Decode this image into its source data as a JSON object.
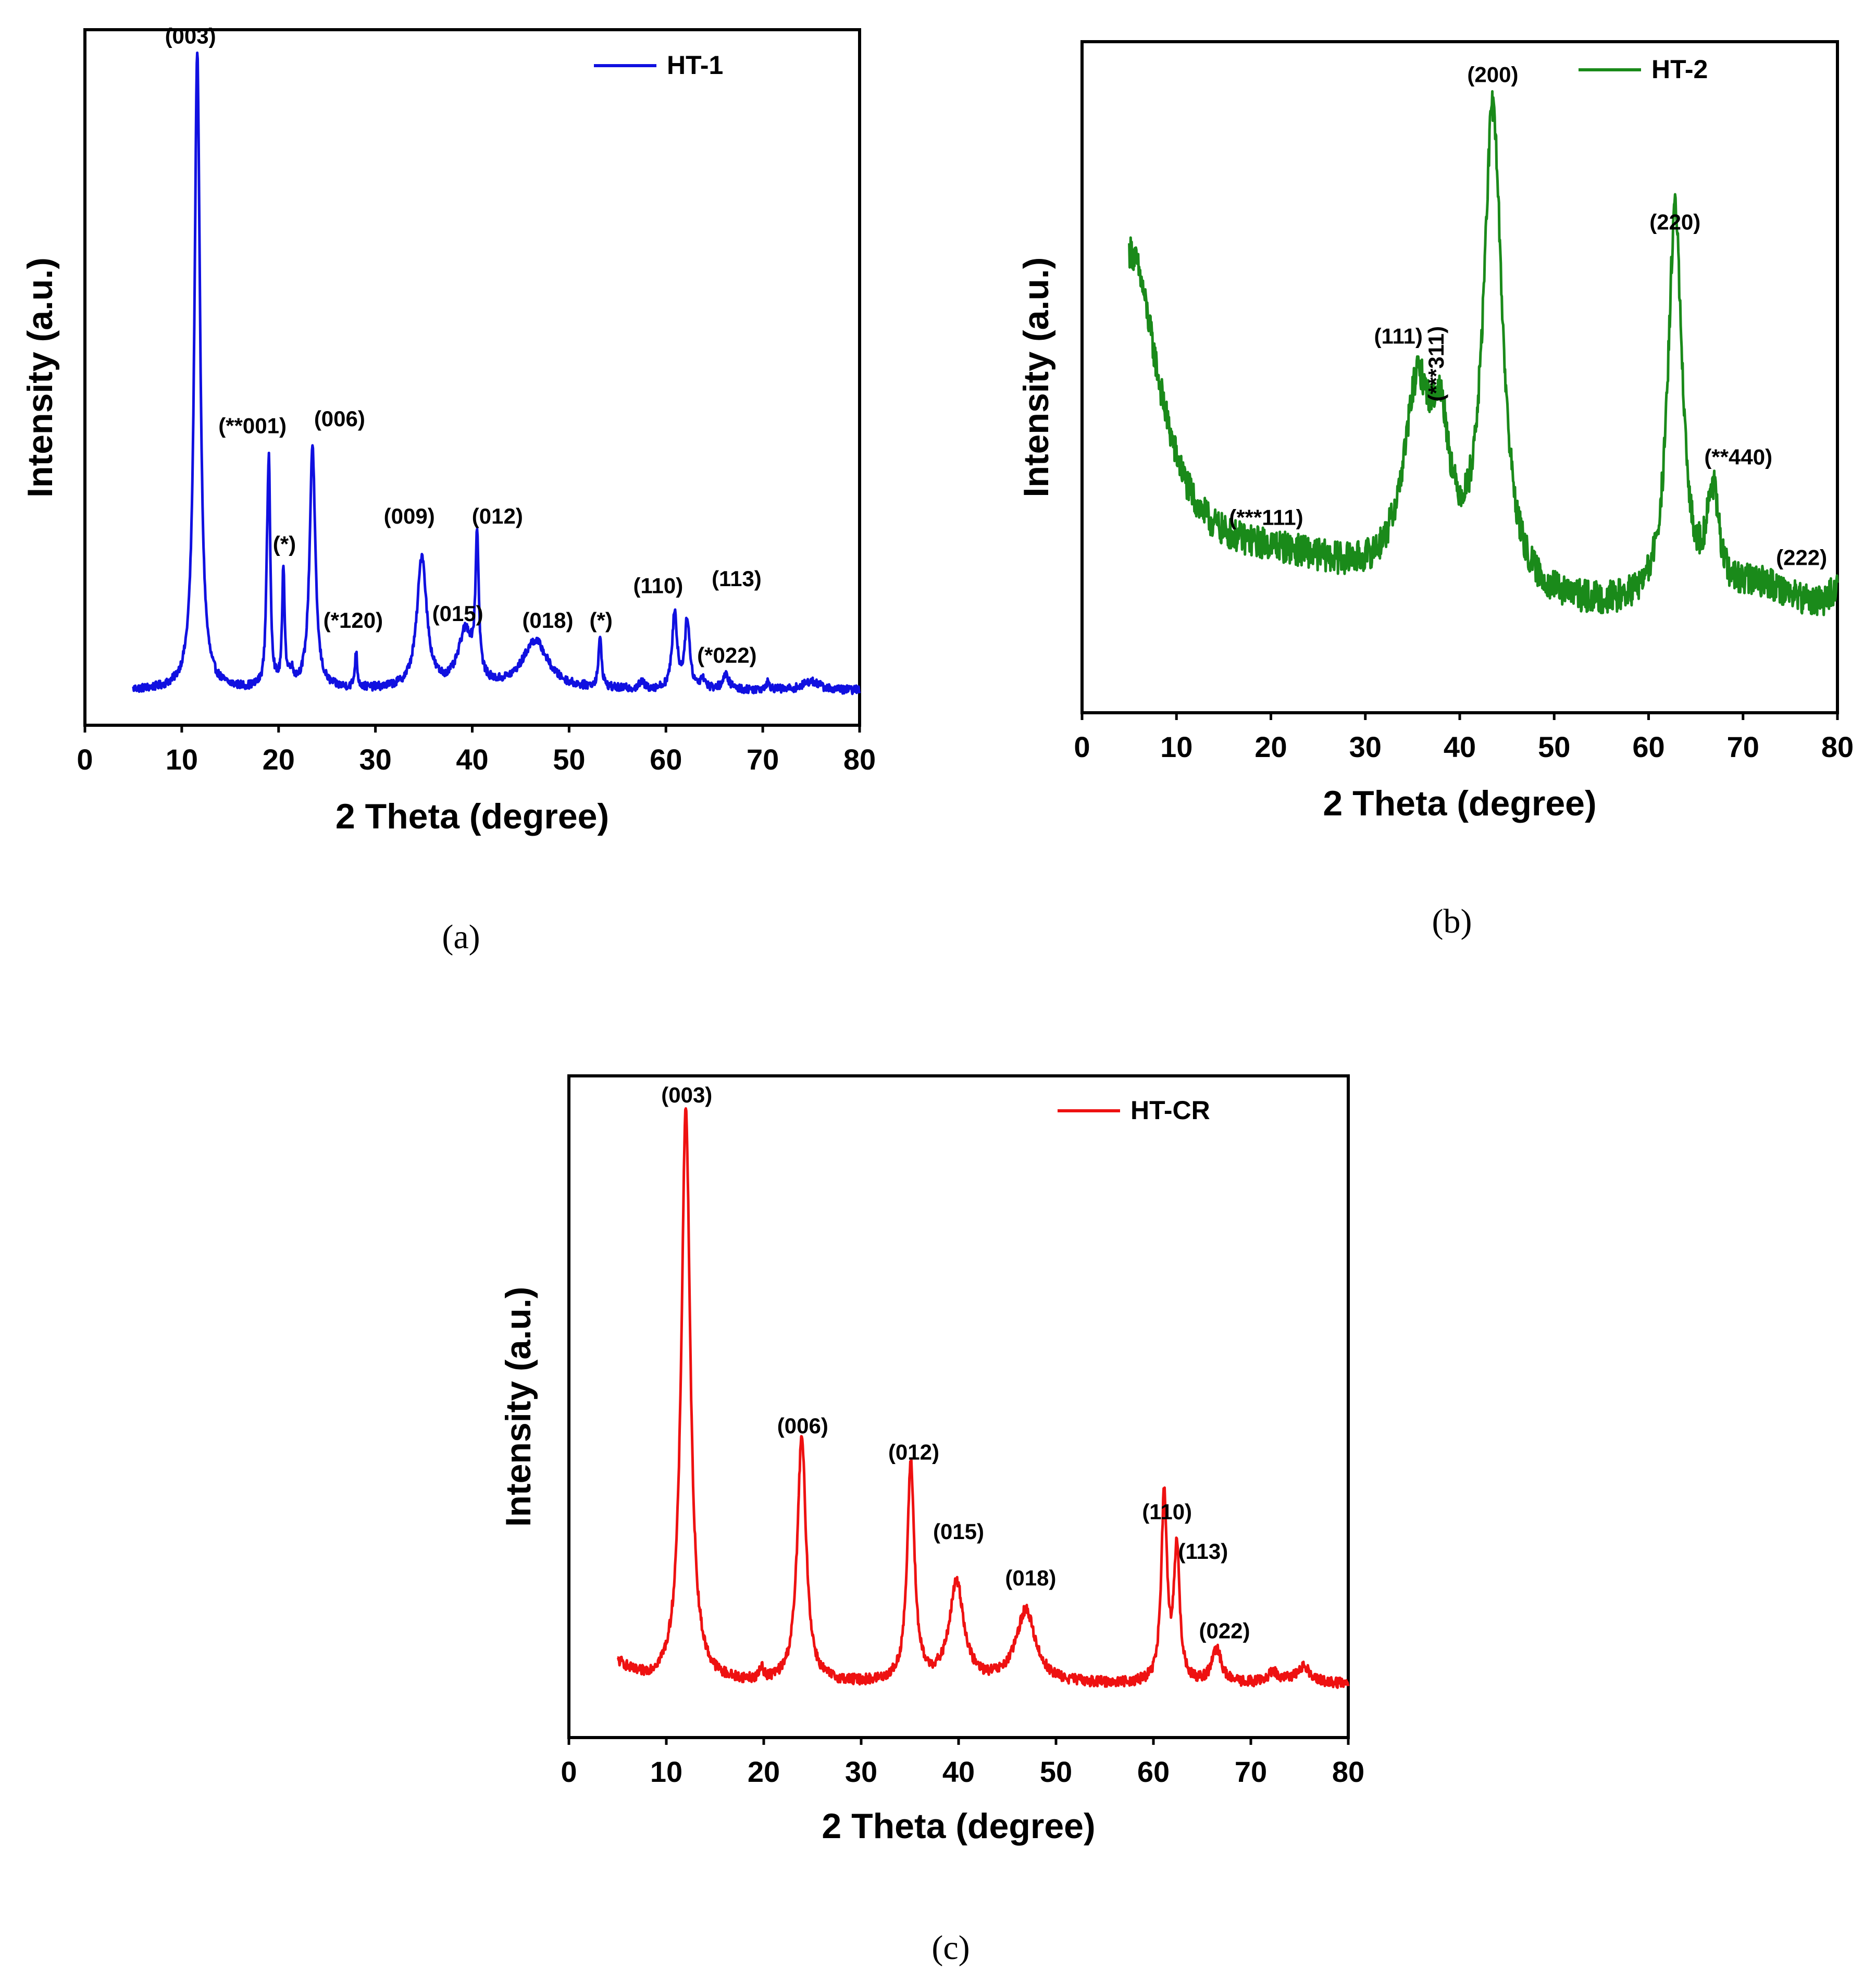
{
  "chart_data": [
    {
      "type": "line",
      "panel": "a",
      "caption": "(a)",
      "xlabel": "2 Theta (degree)",
      "ylabel": "Intensity (a.u.)",
      "xlim": [
        0,
        80
      ],
      "ylim": [
        0,
        100
      ],
      "xticks": [
        "0",
        "10",
        "20",
        "30",
        "40",
        "50",
        "60",
        "70",
        "80"
      ],
      "grid": false,
      "legend": {
        "label": "HT-1",
        "position": "top-right"
      },
      "series": [
        {
          "name": "HT-1",
          "color": "#1010e0",
          "baseline": 5,
          "noise": 0.6,
          "x_range": [
            5,
            80
          ],
          "peaks": [
            {
              "x": 11.6,
              "h": 92,
              "w": 0.35
            },
            {
              "x": 18.8,
              "h": 8,
              "w": 0.15
            },
            {
              "x": 19.0,
              "h": 30,
              "w": 0.18
            },
            {
              "x": 20.5,
              "h": 17,
              "w": 0.15
            },
            {
              "x": 21.3,
              "h": 2,
              "w": 0.3
            },
            {
              "x": 23.5,
              "h": 35,
              "w": 0.35
            },
            {
              "x": 28.0,
              "h": 5,
              "w": 0.15
            },
            {
              "x": 34.8,
              "h": 19,
              "w": 0.6
            },
            {
              "x": 39.3,
              "h": 8,
              "w": 0.9
            },
            {
              "x": 40.5,
              "h": 20,
              "w": 0.2
            },
            {
              "x": 46.5,
              "h": 7,
              "w": 1.6
            },
            {
              "x": 53.2,
              "h": 7,
              "w": 0.2
            },
            {
              "x": 57.5,
              "h": 1,
              "w": 0.3
            },
            {
              "x": 60.9,
              "h": 11,
              "w": 0.3
            },
            {
              "x": 62.2,
              "h": 10,
              "w": 0.3
            },
            {
              "x": 63.8,
              "h": 1.5,
              "w": 0.3
            },
            {
              "x": 66.2,
              "h": 2,
              "w": 0.4
            },
            {
              "x": 70.5,
              "h": 1,
              "w": 0.3
            },
            {
              "x": 75.0,
              "h": 1.3,
              "w": 1.0
            }
          ]
        }
      ],
      "annotations": [
        {
          "text": "(003)",
          "x": 10.9,
          "y": 98
        },
        {
          "text": "(**001)",
          "x": 17.3,
          "y": 42
        },
        {
          "text": "(006)",
          "x": 26.3,
          "y": 43
        },
        {
          "text": "(*)",
          "x": 20.6,
          "y": 25
        },
        {
          "text": "(*120)",
          "x": 27.7,
          "y": 14
        },
        {
          "text": "(009)",
          "x": 33.5,
          "y": 29
        },
        {
          "text": "(015)",
          "x": 38.5,
          "y": 15
        },
        {
          "text": "(012)",
          "x": 42.6,
          "y": 29
        },
        {
          "text": "(018)",
          "x": 47.8,
          "y": 14
        },
        {
          "text": "(*)",
          "x": 53.3,
          "y": 14
        },
        {
          "text": "(110)",
          "x": 59.2,
          "y": 19
        },
        {
          "text": "(113)",
          "x": 67.3,
          "y": 20
        },
        {
          "text": "(*022)",
          "x": 66.3,
          "y": 9
        }
      ]
    },
    {
      "type": "line",
      "panel": "b",
      "caption": "(b)",
      "xlabel": "2 Theta (degree)",
      "ylabel": "Intensity (a.u.)",
      "xlim": [
        0,
        80
      ],
      "ylim": [
        0,
        100
      ],
      "xticks": [
        "0",
        "10",
        "20",
        "30",
        "40",
        "50",
        "60",
        "70",
        "80"
      ],
      "grid": false,
      "legend": {
        "label": "HT-2",
        "position": "top-right"
      },
      "series": [
        {
          "name": "HT-2",
          "color": "#1a8a1a",
          "baseline": 14,
          "noise": 2.4,
          "x_range": [
            5,
            80
          ],
          "peaks": [
            {
              "x": 5.0,
              "h": 52,
              "w": 4.0
            },
            {
              "x": 21.0,
              "h": 7,
              "w": 12.0
            },
            {
              "x": 35.5,
              "h": 28,
              "w": 1.8
            },
            {
              "x": 38.0,
              "h": 18,
              "w": 1.2
            },
            {
              "x": 43.5,
              "h": 72,
              "w": 1.2
            },
            {
              "x": 62.8,
              "h": 59,
              "w": 0.9
            },
            {
              "x": 66.8,
              "h": 15,
              "w": 0.8
            },
            {
              "x": 72.0,
              "h": 4,
              "w": 4.0
            },
            {
              "x": 80.0,
              "h": 3,
              "w": 1.0
            }
          ]
        }
      ],
      "annotations": [
        {
          "text": "(200)",
          "x": 43.5,
          "y": 94
        },
        {
          "text": "(220)",
          "x": 62.8,
          "y": 72
        },
        {
          "text": "(111)",
          "x": 33.5,
          "y": 55
        },
        {
          "text": "(***311)",
          "x": 38.3,
          "y": 52,
          "rotate": -90
        },
        {
          "text": "(**440)",
          "x": 69.5,
          "y": 37
        },
        {
          "text": "(***111)",
          "x": 19.5,
          "y": 28
        },
        {
          "text": "(222)",
          "x": 76.2,
          "y": 22
        }
      ]
    },
    {
      "type": "line",
      "panel": "c",
      "caption": "(c)",
      "xlabel": "2 Theta (degree)",
      "ylabel": "Intensity (a.u.)",
      "xlim": [
        0,
        80
      ],
      "ylim": [
        0,
        100
      ],
      "xticks": [
        "0",
        "10",
        "20",
        "30",
        "40",
        "50",
        "60",
        "70",
        "80"
      ],
      "grid": false,
      "legend": {
        "label": "HT-CR",
        "position": "top-right"
      },
      "series": [
        {
          "name": "HT-CR",
          "color": "#ee1111",
          "baseline": 8,
          "noise": 0.8,
          "x_range": [
            5,
            80
          ],
          "peaks": [
            {
              "x": 5.0,
              "h": 3,
              "w": 1.5
            },
            {
              "x": 12.0,
              "h": 87,
              "w": 0.55
            },
            {
              "x": 19.8,
              "h": 2,
              "w": 0.2
            },
            {
              "x": 23.9,
              "h": 37,
              "w": 0.55
            },
            {
              "x": 35.1,
              "h": 33,
              "w": 0.45
            },
            {
              "x": 39.8,
              "h": 15,
              "w": 0.9
            },
            {
              "x": 46.9,
              "h": 11,
              "w": 1.2
            },
            {
              "x": 61.1,
              "h": 28,
              "w": 0.35
            },
            {
              "x": 62.4,
              "h": 20,
              "w": 0.35
            },
            {
              "x": 66.5,
              "h": 5,
              "w": 0.6
            },
            {
              "x": 72.3,
              "h": 1.5,
              "w": 0.8
            },
            {
              "x": 75.4,
              "h": 2.5,
              "w": 1.0
            }
          ]
        }
      ],
      "annotations": [
        {
          "text": "(003)",
          "x": 12.1,
          "y": 96
        },
        {
          "text": "(006)",
          "x": 24.0,
          "y": 46
        },
        {
          "text": "(012)",
          "x": 35.4,
          "y": 42
        },
        {
          "text": "(015)",
          "x": 40.0,
          "y": 30
        },
        {
          "text": "(018)",
          "x": 47.4,
          "y": 23
        },
        {
          "text": "(110)",
          "x": 61.4,
          "y": 33
        },
        {
          "text": "(113)",
          "x": 65.1,
          "y": 27
        },
        {
          "text": "(022)",
          "x": 67.3,
          "y": 15
        }
      ]
    }
  ]
}
